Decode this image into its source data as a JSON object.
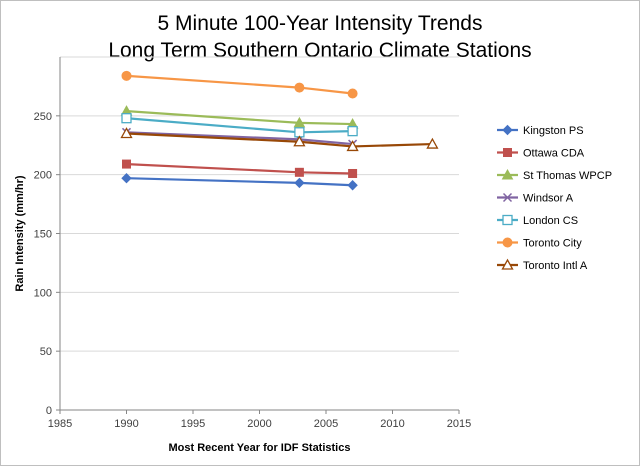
{
  "chart_data": {
    "type": "line",
    "title": [
      "5 Minute 100-Year Intensity Trends",
      "Long Term Southern Ontario Climate Stations"
    ],
    "xlabel": "Most Recent Year for IDF Statistics",
    "ylabel": "Rain Intensity (mm/hr)",
    "xlim": [
      1985,
      2015
    ],
    "ylim": [
      0,
      300
    ],
    "xticks": [
      1985,
      1990,
      1995,
      2000,
      2005,
      2010,
      2015
    ],
    "yticks": [
      0,
      50,
      100,
      150,
      200,
      250
    ],
    "grid": true,
    "legend_position": "right",
    "series": [
      {
        "name": "Kingston PS",
        "color": "#4472C4",
        "marker": "diamond",
        "x": [
          1990,
          2003,
          2007
        ],
        "y": [
          197,
          193,
          191
        ]
      },
      {
        "name": "Ottawa CDA",
        "color": "#C0504D",
        "marker": "square",
        "x": [
          1990,
          2003,
          2007
        ],
        "y": [
          209,
          202,
          201
        ]
      },
      {
        "name": "St Thomas WPCP",
        "color": "#9BBB59",
        "marker": "triangle",
        "x": [
          1990,
          2003,
          2007
        ],
        "y": [
          254,
          244,
          243
        ]
      },
      {
        "name": "Windsor A",
        "color": "#8064A2",
        "marker": "x",
        "x": [
          1990,
          2003,
          2007
        ],
        "y": [
          236,
          230,
          226
        ]
      },
      {
        "name": "London CS",
        "color": "#4BACC6",
        "marker": "square-open",
        "x": [
          1990,
          2003,
          2007
        ],
        "y": [
          248,
          236,
          237
        ]
      },
      {
        "name": "Toronto City",
        "color": "#F79646",
        "marker": "circle",
        "x": [
          1990,
          2003,
          2007
        ],
        "y": [
          284,
          274,
          269
        ]
      },
      {
        "name": "Toronto Intl A",
        "color": "#984807",
        "marker": "triangle-open",
        "x": [
          1990,
          2003,
          2007,
          2013
        ],
        "y": [
          235,
          228,
          224,
          226
        ]
      }
    ]
  }
}
